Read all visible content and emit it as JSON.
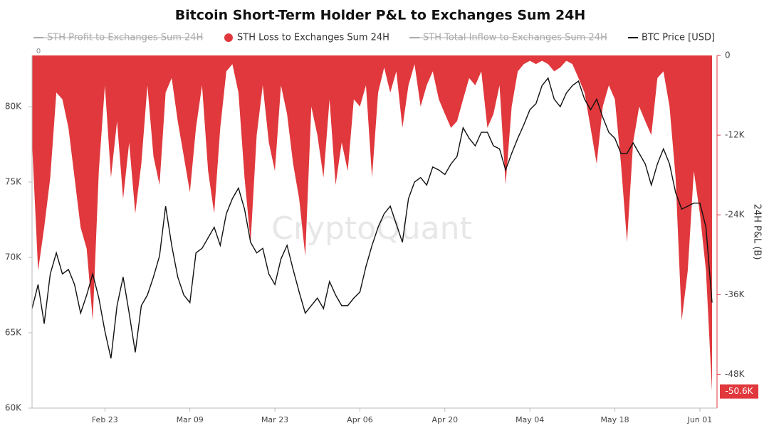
{
  "chart_data": {
    "type": "area-line",
    "title": "Bitcoin Short-Term Holder P&L to Exchanges Sum 24H",
    "watermark": "CryptoQuant",
    "top_left_label": "0",
    "y2_label": "24H P&L (B)",
    "categories": [
      null,
      null,
      null,
      null,
      null,
      null,
      null,
      null,
      null,
      null,
      null,
      null,
      "Feb 23",
      null,
      null,
      null,
      null,
      null,
      null,
      null,
      null,
      null,
      null,
      null,
      null,
      null,
      "Mar 09",
      null,
      null,
      null,
      null,
      null,
      null,
      null,
      null,
      null,
      null,
      null,
      null,
      null,
      "Mar 23",
      null,
      null,
      null,
      null,
      null,
      null,
      null,
      null,
      null,
      null,
      null,
      null,
      null,
      "Apr 06",
      null,
      null,
      null,
      null,
      null,
      null,
      null,
      null,
      null,
      null,
      null,
      null,
      null,
      "Apr 20",
      null,
      null,
      null,
      null,
      null,
      null,
      null,
      null,
      null,
      null,
      null,
      null,
      null,
      "May 04",
      null,
      null,
      null,
      null,
      null,
      null,
      null,
      null,
      null,
      null,
      null,
      null,
      null,
      "May 18",
      null,
      null,
      null,
      null,
      null,
      null,
      null,
      null,
      null,
      null,
      null,
      null,
      null,
      "Jun 01",
      null,
      null
    ],
    "ylim": [
      60000,
      83400
    ],
    "yticks": [
      {
        "value": 60000,
        "label": "60K"
      },
      {
        "value": 65000,
        "label": "65K"
      },
      {
        "value": 70000,
        "label": "70K"
      },
      {
        "value": 75000,
        "label": "75K"
      },
      {
        "value": 80000,
        "label": "80K"
      }
    ],
    "y2lim": [
      -53100,
      0
    ],
    "y2ticks": [
      {
        "value": -48000,
        "label": "-48K"
      },
      {
        "value": -36000,
        "label": "-36K"
      },
      {
        "value": -24000,
        "label": "-24K"
      },
      {
        "value": -12000,
        "label": "-12K"
      },
      0
    ],
    "series": [
      {
        "name": "STH Profit to Exchanges Sum 24H",
        "color": "#999999",
        "visible": false
      },
      {
        "name": "STH Loss to Exchanges Sum 24H",
        "color": "#e0383c",
        "axis": "y2",
        "kind": "area",
        "values": [
          -13100,
          -32400,
          -25900,
          -18400,
          -5600,
          -6600,
          -10900,
          -18400,
          -25900,
          -29100,
          -39900,
          -17400,
          -4500,
          -18400,
          -9900,
          -21600,
          -13100,
          -23800,
          -16300,
          -4500,
          -15200,
          -19500,
          -5600,
          -3400,
          -9900,
          -15200,
          -20600,
          -10900,
          -4500,
          -17400,
          -23800,
          -10900,
          -2400,
          -1300,
          -5600,
          -18400,
          -28100,
          -12000,
          -4500,
          -13100,
          -17400,
          -4500,
          -8800,
          -16300,
          -21600,
          -30200,
          -7700,
          -12000,
          -18400,
          -6600,
          -19500,
          -13100,
          -17400,
          -6600,
          -7700,
          -4500,
          -18400,
          -5600,
          -1800,
          -5600,
          -2400,
          -10900,
          -4500,
          -1300,
          -7700,
          -4500,
          -2400,
          -6600,
          -8800,
          -10900,
          -9900,
          -6600,
          -3400,
          -4500,
          -2400,
          -10900,
          -8800,
          -4500,
          -19500,
          -7700,
          -2400,
          -1300,
          -800,
          -1300,
          -800,
          -1300,
          -2400,
          -1800,
          -800,
          -1300,
          -3400,
          -5600,
          -10900,
          -16300,
          -7700,
          -4500,
          -6600,
          -16300,
          -28100,
          -13100,
          -7700,
          -9900,
          -12000,
          -3400,
          -2400,
          -7700,
          -18400,
          -39900,
          -32400,
          -17400,
          -23800,
          -32400,
          -50600
        ],
        "value_labels": [
          null,
          null,
          null,
          null,
          null,
          null,
          null,
          null,
          null,
          null,
          null,
          null,
          null,
          null,
          null,
          null,
          null,
          null,
          null,
          null,
          null,
          null,
          null,
          null,
          null,
          null,
          null,
          null,
          null,
          null,
          null,
          null,
          null,
          null,
          null,
          null,
          null,
          null,
          null,
          null,
          null,
          null,
          null,
          null,
          null,
          null,
          null,
          null,
          null,
          null,
          null,
          null,
          null,
          null,
          null,
          null,
          null,
          null,
          null,
          null,
          null,
          null,
          null,
          null,
          null,
          null,
          null,
          null,
          null,
          null,
          null,
          null,
          null,
          null,
          null,
          null,
          null,
          null,
          null,
          null,
          null,
          null,
          null,
          null,
          null,
          null,
          null,
          null,
          null,
          null,
          null,
          null,
          null,
          null,
          null,
          null,
          null,
          null,
          null,
          null,
          null,
          null,
          null,
          null,
          null,
          null,
          null,
          null,
          null,
          null,
          null,
          null,
          "-50.6K"
        ]
      },
      {
        "name": "STH Total Inflow to Exchanges Sum 24H",
        "color": "#999999",
        "visible": false
      },
      {
        "name": "BTC Price [USD]",
        "color": "#111111",
        "kind": "line",
        "values": [
          66600,
          68200,
          65600,
          68900,
          70300,
          68900,
          69200,
          68200,
          66300,
          67500,
          68900,
          67300,
          65100,
          63300,
          66800,
          68700,
          66300,
          63700,
          66800,
          67500,
          68700,
          70100,
          73400,
          70800,
          68700,
          67500,
          67000,
          70300,
          70600,
          71300,
          72000,
          70800,
          72900,
          73900,
          74600,
          73200,
          71000,
          70300,
          70600,
          68900,
          68200,
          69900,
          70800,
          69200,
          67700,
          66300,
          66800,
          67300,
          66600,
          68400,
          67500,
          66800,
          66800,
          67300,
          67700,
          69400,
          70800,
          72000,
          72900,
          73400,
          72200,
          71000,
          73900,
          75000,
          75300,
          74800,
          76000,
          75800,
          75500,
          76200,
          76700,
          78600,
          77900,
          77400,
          78300,
          78300,
          77400,
          77200,
          75800,
          76900,
          77900,
          78800,
          79800,
          80200,
          81400,
          81900,
          80500,
          80000,
          80900,
          81400,
          81700,
          80500,
          79800,
          80500,
          79300,
          78300,
          77900,
          76900,
          76900,
          77600,
          76900,
          76200,
          74800,
          76200,
          77200,
          76200,
          74300,
          73200,
          73400,
          73600,
          73600,
          72000,
          67000
        ]
      }
    ]
  }
}
